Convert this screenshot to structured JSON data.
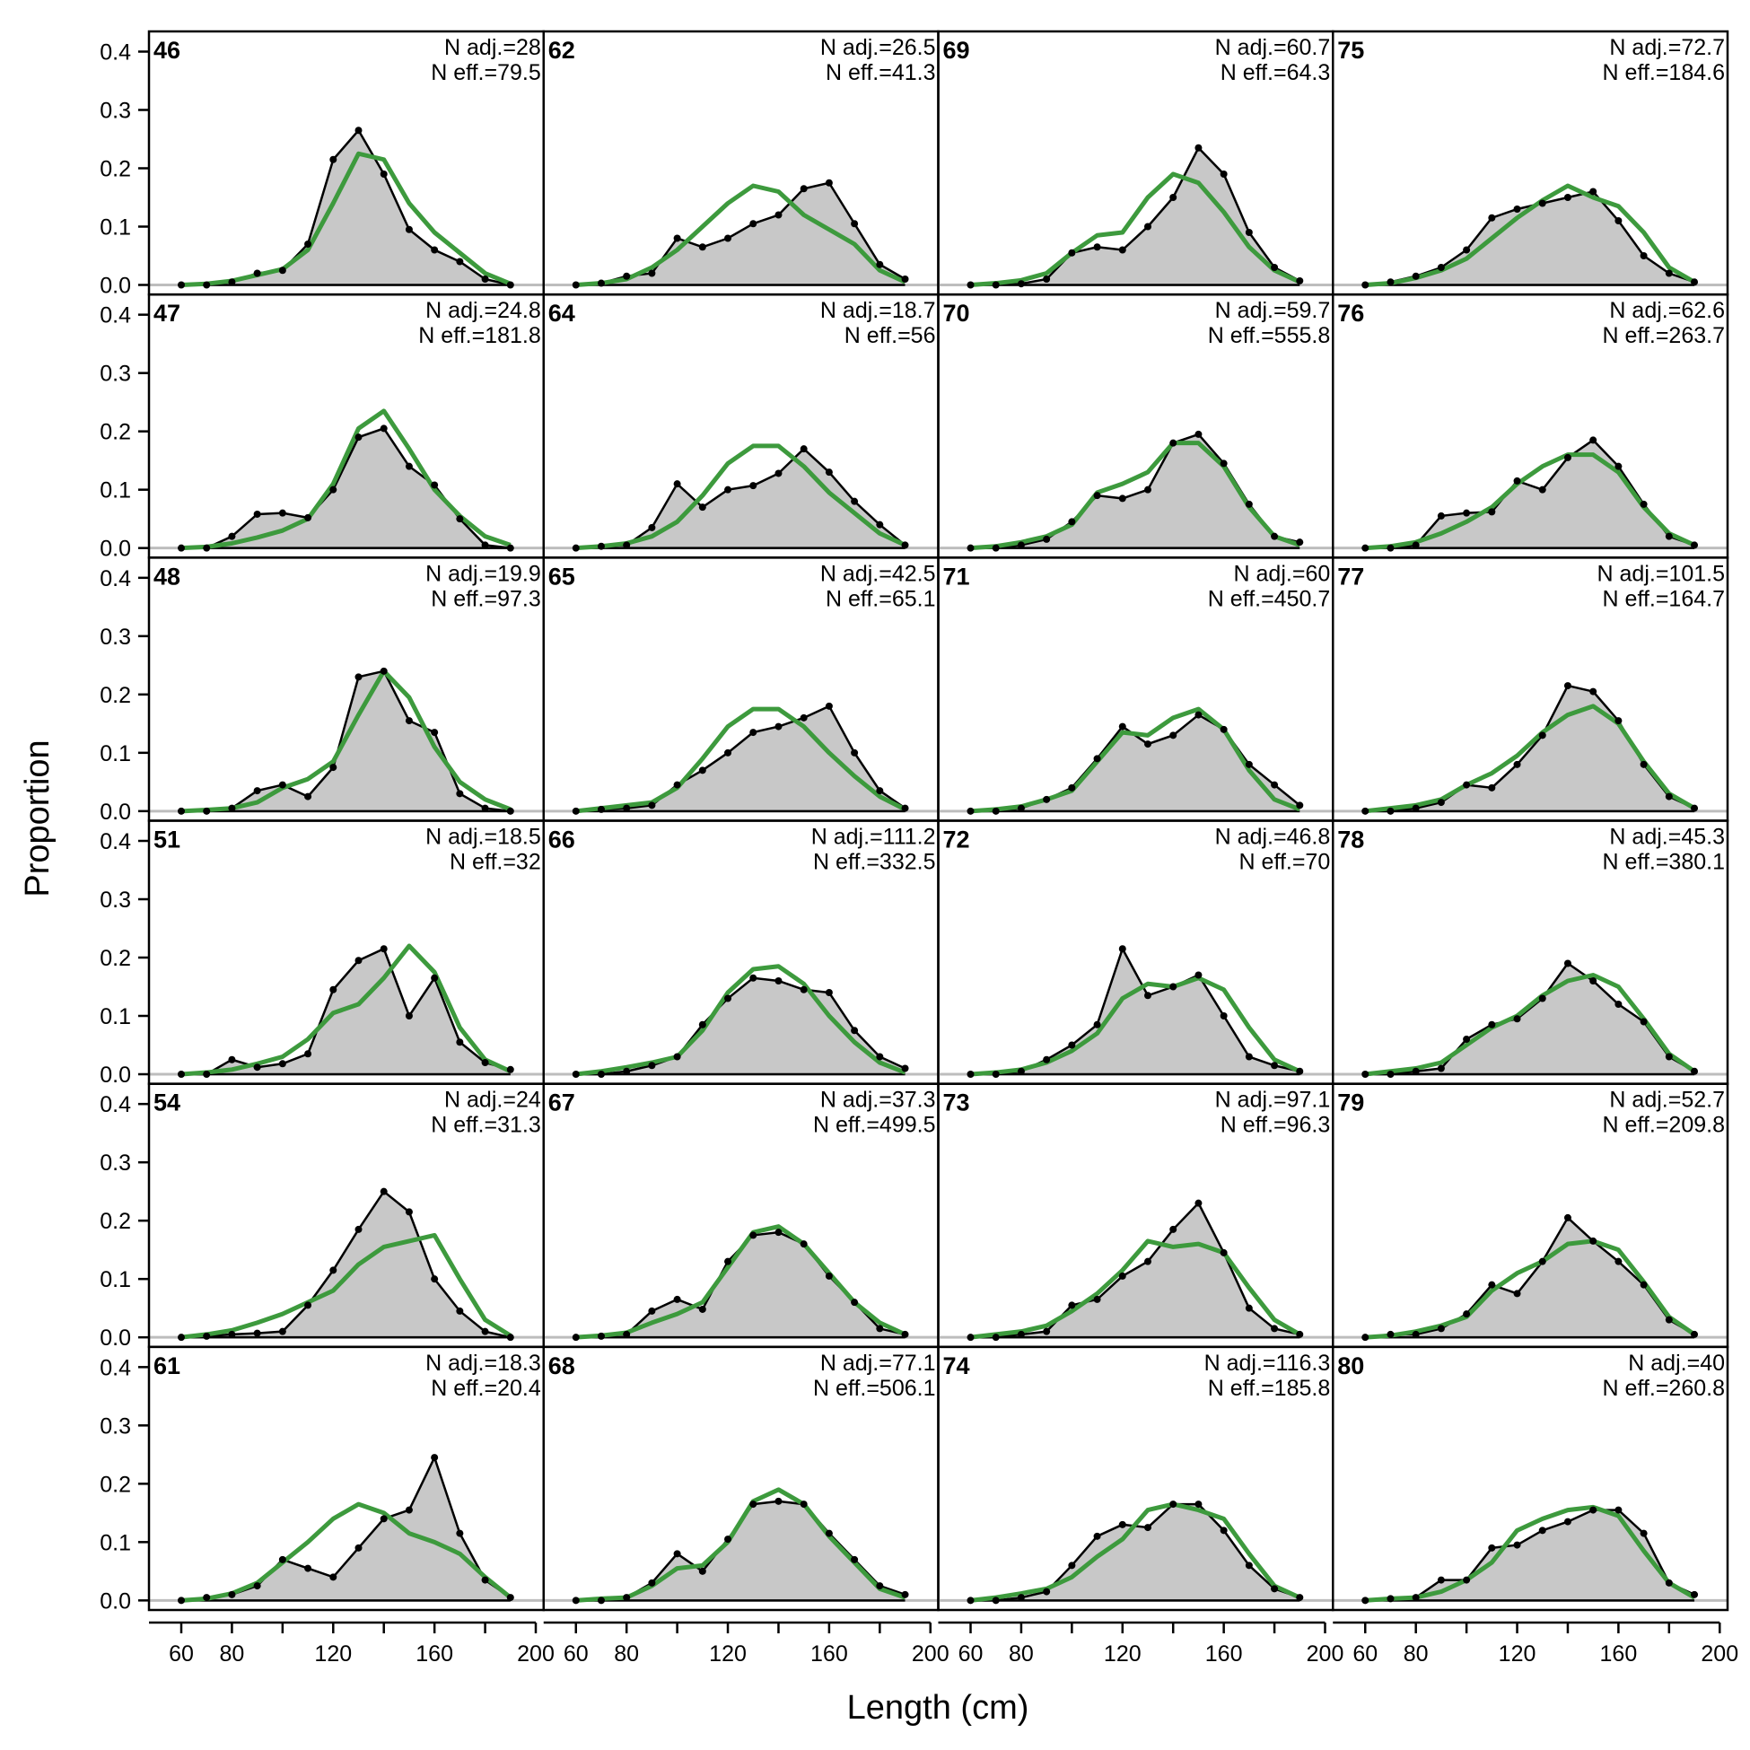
{
  "chart_data": {
    "type": "area",
    "xlabel": "Length (cm)",
    "ylabel": "Proportion",
    "xlim": [
      60,
      200
    ],
    "ylim": [
      0,
      0.4
    ],
    "x_ticks": [
      60,
      80,
      100,
      120,
      140,
      160,
      180,
      200
    ],
    "x_tick_labels": [
      "60",
      "80",
      "",
      "120",
      "",
      "160",
      "",
      "200"
    ],
    "y_ticks": [
      0,
      0.1,
      0.2,
      0.3,
      0.4
    ],
    "y_tick_labels": [
      "0.0",
      "0.1",
      "0.2",
      "0.3",
      "0.4"
    ],
    "grid": false,
    "x": [
      60,
      70,
      80,
      90,
      100,
      110,
      120,
      130,
      140,
      150,
      160,
      170,
      180,
      190
    ],
    "series_styles": {
      "observed": "#000000",
      "observed_fill": "#c8c8c8",
      "expected": "#3d9a3d",
      "zero_line": "#bdbdbd"
    },
    "panels": [
      {
        "label": "46",
        "n_adj": "N adj.=28",
        "n_eff": "N eff.=79.5",
        "observed": [
          0,
          0,
          0.005,
          0.02,
          0.025,
          0.07,
          0.215,
          0.265,
          0.19,
          0.095,
          0.06,
          0.04,
          0.01,
          0
        ],
        "expected": [
          0,
          0.002,
          0.007,
          0.017,
          0.027,
          0.06,
          0.14,
          0.225,
          0.215,
          0.14,
          0.09,
          0.055,
          0.02,
          0.002
        ]
      },
      {
        "label": "62",
        "n_adj": "N adj.=26.5",
        "n_eff": "N eff.=41.3",
        "observed": [
          0,
          0.003,
          0.015,
          0.02,
          0.08,
          0.065,
          0.08,
          0.105,
          0.12,
          0.165,
          0.175,
          0.105,
          0.035,
          0.01
        ],
        "expected": [
          0,
          0.003,
          0.01,
          0.03,
          0.06,
          0.1,
          0.14,
          0.17,
          0.16,
          0.12,
          0.095,
          0.07,
          0.025,
          0.005
        ]
      },
      {
        "label": "69",
        "n_adj": "N adj.=60.7",
        "n_eff": "N eff.=64.3",
        "observed": [
          0,
          0,
          0.002,
          0.01,
          0.055,
          0.065,
          0.06,
          0.1,
          0.15,
          0.235,
          0.19,
          0.09,
          0.03,
          0.007
        ],
        "expected": [
          0,
          0.003,
          0.008,
          0.02,
          0.055,
          0.085,
          0.09,
          0.15,
          0.19,
          0.175,
          0.125,
          0.065,
          0.025,
          0.005
        ]
      },
      {
        "label": "75",
        "n_adj": "N adj.=72.7",
        "n_eff": "N eff.=184.6",
        "observed": [
          0,
          0.005,
          0.015,
          0.03,
          0.06,
          0.115,
          0.13,
          0.14,
          0.15,
          0.16,
          0.11,
          0.05,
          0.02,
          0.005
        ],
        "expected": [
          0,
          0.003,
          0.012,
          0.025,
          0.045,
          0.08,
          0.115,
          0.145,
          0.17,
          0.15,
          0.135,
          0.09,
          0.03,
          0.005
        ]
      },
      {
        "label": "47",
        "n_adj": "N adj.=24.8",
        "n_eff": "N eff.=181.8",
        "observed": [
          0,
          0,
          0.02,
          0.058,
          0.06,
          0.052,
          0.1,
          0.19,
          0.205,
          0.14,
          0.108,
          0.05,
          0.005,
          0
        ],
        "expected": [
          0,
          0.002,
          0.008,
          0.018,
          0.03,
          0.05,
          0.11,
          0.205,
          0.235,
          0.17,
          0.1,
          0.055,
          0.02,
          0.005
        ]
      },
      {
        "label": "64",
        "n_adj": "N adj.=18.7",
        "n_eff": "N eff.=56",
        "observed": [
          0,
          0.003,
          0.005,
          0.035,
          0.11,
          0.07,
          0.1,
          0.107,
          0.128,
          0.17,
          0.13,
          0.08,
          0.04,
          0.005
        ],
        "expected": [
          0,
          0.003,
          0.008,
          0.02,
          0.045,
          0.09,
          0.145,
          0.175,
          0.175,
          0.14,
          0.095,
          0.06,
          0.025,
          0.005
        ]
      },
      {
        "label": "70",
        "n_adj": "N adj.=59.7",
        "n_eff": "N eff.=555.8",
        "observed": [
          0,
          0,
          0.005,
          0.015,
          0.045,
          0.09,
          0.085,
          0.1,
          0.18,
          0.195,
          0.145,
          0.075,
          0.02,
          0.01
        ],
        "expected": [
          0,
          0.003,
          0.01,
          0.02,
          0.04,
          0.095,
          0.11,
          0.13,
          0.18,
          0.18,
          0.14,
          0.07,
          0.02,
          0.005
        ]
      },
      {
        "label": "76",
        "n_adj": "N adj.=62.6",
        "n_eff": "N eff.=263.7",
        "observed": [
          0,
          0,
          0.005,
          0.055,
          0.06,
          0.062,
          0.115,
          0.1,
          0.155,
          0.185,
          0.14,
          0.075,
          0.02,
          0.005
        ],
        "expected": [
          0,
          0.003,
          0.01,
          0.025,
          0.045,
          0.07,
          0.11,
          0.14,
          0.16,
          0.16,
          0.13,
          0.07,
          0.025,
          0.005
        ]
      },
      {
        "label": "48",
        "n_adj": "N adj.=19.9",
        "n_eff": "N eff.=97.3",
        "observed": [
          0,
          0,
          0.005,
          0.035,
          0.045,
          0.025,
          0.075,
          0.23,
          0.24,
          0.155,
          0.135,
          0.03,
          0.005,
          0
        ],
        "expected": [
          0,
          0.002,
          0.005,
          0.015,
          0.04,
          0.055,
          0.085,
          0.165,
          0.24,
          0.195,
          0.11,
          0.05,
          0.02,
          0.003
        ]
      },
      {
        "label": "65",
        "n_adj": "N adj.=42.5",
        "n_eff": "N eff.=65.1",
        "observed": [
          0,
          0.003,
          0.005,
          0.01,
          0.045,
          0.07,
          0.1,
          0.135,
          0.145,
          0.16,
          0.18,
          0.1,
          0.035,
          0.005
        ],
        "expected": [
          0,
          0.005,
          0.01,
          0.015,
          0.04,
          0.09,
          0.145,
          0.175,
          0.175,
          0.145,
          0.1,
          0.06,
          0.025,
          0.003
        ]
      },
      {
        "label": "71",
        "n_adj": "N adj.=60",
        "n_eff": "N eff.=450.7",
        "observed": [
          0,
          0,
          0.005,
          0.02,
          0.04,
          0.09,
          0.145,
          0.115,
          0.13,
          0.165,
          0.14,
          0.08,
          0.045,
          0.01
        ],
        "expected": [
          0,
          0.003,
          0.008,
          0.02,
          0.035,
          0.085,
          0.135,
          0.13,
          0.16,
          0.175,
          0.14,
          0.07,
          0.02,
          0.003
        ]
      },
      {
        "label": "77",
        "n_adj": "N adj.=101.5",
        "n_eff": "N eff.=164.7",
        "observed": [
          0,
          0,
          0.005,
          0.015,
          0.045,
          0.04,
          0.08,
          0.13,
          0.215,
          0.205,
          0.155,
          0.08,
          0.025,
          0.005
        ],
        "expected": [
          0,
          0.005,
          0.01,
          0.02,
          0.045,
          0.065,
          0.095,
          0.135,
          0.165,
          0.18,
          0.15,
          0.085,
          0.03,
          0.005
        ]
      },
      {
        "label": "51",
        "n_adj": "N adj.=18.5",
        "n_eff": "N eff.=32",
        "observed": [
          0,
          0,
          0.025,
          0.012,
          0.018,
          0.035,
          0.145,
          0.195,
          0.215,
          0.1,
          0.165,
          0.055,
          0.02,
          0.008
        ],
        "expected": [
          0,
          0.003,
          0.008,
          0.018,
          0.03,
          0.06,
          0.105,
          0.12,
          0.165,
          0.22,
          0.175,
          0.08,
          0.025,
          0.005
        ]
      },
      {
        "label": "66",
        "n_adj": "N adj.=111.2",
        "n_eff": "N eff.=332.5",
        "observed": [
          0,
          0,
          0.005,
          0.015,
          0.03,
          0.085,
          0.13,
          0.165,
          0.16,
          0.145,
          0.14,
          0.075,
          0.03,
          0.01
        ],
        "expected": [
          0,
          0.005,
          0.012,
          0.02,
          0.03,
          0.075,
          0.14,
          0.18,
          0.185,
          0.155,
          0.1,
          0.055,
          0.02,
          0.003
        ]
      },
      {
        "label": "72",
        "n_adj": "N adj.=46.8",
        "n_eff": "N eff.=70",
        "observed": [
          0,
          0,
          0.005,
          0.025,
          0.05,
          0.085,
          0.215,
          0.135,
          0.15,
          0.17,
          0.1,
          0.03,
          0.015,
          0.005
        ],
        "expected": [
          0,
          0.003,
          0.008,
          0.02,
          0.04,
          0.07,
          0.13,
          0.155,
          0.15,
          0.165,
          0.145,
          0.08,
          0.025,
          0.005
        ]
      },
      {
        "label": "78",
        "n_adj": "N adj.=45.3",
        "n_eff": "N eff.=380.1",
        "observed": [
          0,
          0,
          0.005,
          0.01,
          0.06,
          0.085,
          0.095,
          0.13,
          0.19,
          0.16,
          0.12,
          0.09,
          0.03,
          0.005
        ],
        "expected": [
          0,
          0.005,
          0.01,
          0.02,
          0.05,
          0.08,
          0.1,
          0.135,
          0.16,
          0.17,
          0.15,
          0.095,
          0.035,
          0.005
        ]
      },
      {
        "label": "54",
        "n_adj": "N adj.=24",
        "n_eff": "N eff.=31.3",
        "observed": [
          0,
          0.002,
          0.005,
          0.007,
          0.01,
          0.055,
          0.115,
          0.185,
          0.25,
          0.215,
          0.1,
          0.045,
          0.01,
          0
        ],
        "expected": [
          0,
          0.005,
          0.012,
          0.025,
          0.04,
          0.06,
          0.08,
          0.125,
          0.155,
          0.165,
          0.175,
          0.1,
          0.03,
          0.003
        ]
      },
      {
        "label": "67",
        "n_adj": "N adj.=37.3",
        "n_eff": "N eff.=499.5",
        "observed": [
          0,
          0.002,
          0.005,
          0.045,
          0.065,
          0.048,
          0.13,
          0.175,
          0.18,
          0.16,
          0.105,
          0.06,
          0.015,
          0.005
        ],
        "expected": [
          0,
          0.003,
          0.008,
          0.025,
          0.04,
          0.06,
          0.12,
          0.18,
          0.19,
          0.16,
          0.11,
          0.06,
          0.025,
          0.005
        ]
      },
      {
        "label": "73",
        "n_adj": "N adj.=97.1",
        "n_eff": "N eff.=96.3",
        "observed": [
          0,
          0,
          0.005,
          0.01,
          0.055,
          0.065,
          0.105,
          0.13,
          0.185,
          0.23,
          0.145,
          0.05,
          0.015,
          0.005
        ],
        "expected": [
          0,
          0.005,
          0.01,
          0.02,
          0.045,
          0.075,
          0.115,
          0.165,
          0.155,
          0.16,
          0.145,
          0.085,
          0.03,
          0.005
        ]
      },
      {
        "label": "79",
        "n_adj": "N adj.=52.7",
        "n_eff": "N eff.=209.8",
        "observed": [
          0,
          0.005,
          0.005,
          0.015,
          0.04,
          0.09,
          0.075,
          0.13,
          0.205,
          0.165,
          0.13,
          0.09,
          0.03,
          0.005
        ],
        "expected": [
          0,
          0.003,
          0.01,
          0.02,
          0.035,
          0.08,
          0.11,
          0.13,
          0.16,
          0.165,
          0.15,
          0.095,
          0.035,
          0.005
        ]
      },
      {
        "label": "61",
        "n_adj": "N adj.=18.3",
        "n_eff": "N eff.=20.4",
        "observed": [
          0,
          0.005,
          0.01,
          0.025,
          0.07,
          0.055,
          0.04,
          0.09,
          0.14,
          0.155,
          0.245,
          0.115,
          0.035,
          0.005
        ],
        "expected": [
          0,
          0.003,
          0.012,
          0.03,
          0.065,
          0.1,
          0.14,
          0.165,
          0.15,
          0.115,
          0.1,
          0.08,
          0.04,
          0.005
        ]
      },
      {
        "label": "68",
        "n_adj": "N adj.=77.1",
        "n_eff": "N eff.=506.1",
        "observed": [
          0,
          0,
          0.005,
          0.03,
          0.08,
          0.05,
          0.105,
          0.165,
          0.17,
          0.165,
          0.115,
          0.07,
          0.025,
          0.01
        ],
        "expected": [
          0,
          0.003,
          0.005,
          0.025,
          0.055,
          0.06,
          0.1,
          0.17,
          0.19,
          0.165,
          0.11,
          0.065,
          0.02,
          0.005
        ]
      },
      {
        "label": "74",
        "n_adj": "N adj.=116.3",
        "n_eff": "N eff.=185.8",
        "observed": [
          0,
          0,
          0.005,
          0.015,
          0.06,
          0.11,
          0.13,
          0.125,
          0.165,
          0.165,
          0.12,
          0.06,
          0.02,
          0.005
        ],
        "expected": [
          0,
          0.005,
          0.012,
          0.02,
          0.04,
          0.075,
          0.105,
          0.155,
          0.165,
          0.155,
          0.14,
          0.08,
          0.025,
          0.005
        ]
      },
      {
        "label": "80",
        "n_adj": "N adj.=40",
        "n_eff": "N eff.=260.8",
        "observed": [
          0,
          0.003,
          0.005,
          0.035,
          0.035,
          0.09,
          0.095,
          0.12,
          0.135,
          0.155,
          0.155,
          0.115,
          0.03,
          0.01
        ],
        "expected": [
          0,
          0.003,
          0.005,
          0.015,
          0.035,
          0.065,
          0.12,
          0.14,
          0.155,
          0.16,
          0.145,
          0.085,
          0.03,
          0.005
        ]
      }
    ]
  }
}
